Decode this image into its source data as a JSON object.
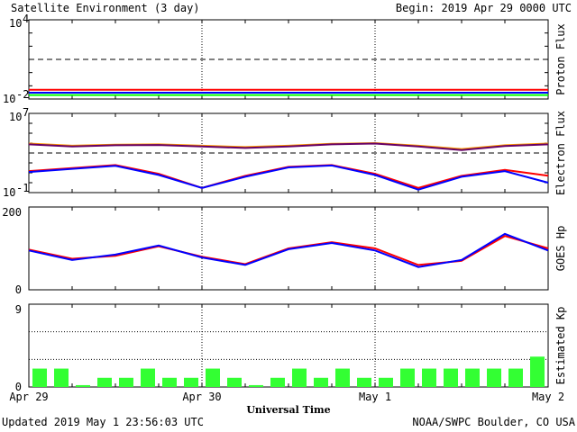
{
  "header": {
    "title": "Satellite Environment (3 day)",
    "begin": "Begin:  2019 Apr 29 0000 UTC"
  },
  "footer": {
    "updated": "Updated 2019 May  1 23:56:03 UTC",
    "credit": "NOAA/SWPC Boulder, CO USA"
  },
  "x_axis": {
    "label": "Universal Time",
    "ticks": [
      "Apr 29",
      "Apr 30",
      "May 1",
      "May 2"
    ]
  },
  "colors": {
    "red": "#ff0000",
    "blue": "#0000ff",
    "green": "#00ff00",
    "orange": "#ff9900",
    "purple": "#660066",
    "kp_bar": "#33ff33"
  },
  "chart_data": [
    {
      "type": "line",
      "ylabel": "Proton Flux",
      "y_scale": "log",
      "ylim": [
        0.01,
        10000
      ],
      "ytick_labels": {
        "top": "10",
        "top_exp": "4",
        "bottom": "10",
        "bottom_exp": "-2"
      },
      "threshold": 10,
      "x": [
        "Apr 29 00",
        "Apr 29 12",
        "Apr 30 00",
        "Apr 30 12",
        "May 1 00",
        "May 1 12",
        "May 2 00"
      ],
      "series": [
        {
          "color": "red",
          "values": [
            0.05,
            0.05,
            0.05,
            0.05,
            0.05,
            0.05,
            0.05
          ]
        },
        {
          "color": "blue",
          "values": [
            0.03,
            0.03,
            0.03,
            0.03,
            0.03,
            0.03,
            0.03
          ]
        },
        {
          "color": "green",
          "values": [
            0.02,
            0.02,
            0.02,
            0.02,
            0.02,
            0.02,
            0.02
          ]
        }
      ]
    },
    {
      "type": "line",
      "ylabel": "Electron Flux",
      "y_scale": "log",
      "ylim": [
        0.1,
        10000000
      ],
      "ytick_labels": {
        "top": "10",
        "top_exp": "7",
        "bottom": "10",
        "bottom_exp": "-1"
      },
      "threshold": 1000,
      "x": [
        "Apr 29 00",
        "Apr 29 06",
        "Apr 29 12",
        "Apr 29 18",
        "Apr 30 00",
        "Apr 30 06",
        "Apr 30 12",
        "Apr 30 18",
        "May 1 00",
        "May 1 06",
        "May 1 12",
        "May 1 18",
        "May 2 00"
      ],
      "series": [
        {
          "color": "orange",
          "values": [
            9000,
            5500,
            7000,
            7500,
            5500,
            4000,
            5500,
            8500,
            10000,
            5500,
            2500,
            6000,
            9000
          ]
        },
        {
          "color": "purple",
          "values": [
            7500,
            4500,
            6000,
            6500,
            4500,
            3200,
            4500,
            7500,
            9000,
            4500,
            2000,
            5000,
            7500
          ]
        },
        {
          "color": "red",
          "values": [
            15,
            30,
            60,
            8,
            0.3,
            5,
            40,
            60,
            8,
            0.3,
            5,
            20,
            5
          ]
        },
        {
          "color": "blue",
          "values": [
            12,
            25,
            50,
            6,
            0.3,
            4,
            35,
            55,
            6,
            0.2,
            4,
            15,
            1
          ]
        }
      ]
    },
    {
      "type": "line",
      "ylabel": "GOES Hp",
      "ylim": [
        0,
        200
      ],
      "ytick_labels": [
        "0",
        "200"
      ],
      "x": [
        "Apr 29 00",
        "Apr 29 06",
        "Apr 29 12",
        "Apr 29 18",
        "Apr 30 00",
        "Apr 30 06",
        "Apr 30 12",
        "Apr 30 18",
        "May 1 00",
        "May 1 06",
        "May 1 12",
        "May 1 18",
        "May 2 00"
      ],
      "series": [
        {
          "color": "red",
          "values": [
            97,
            75,
            82,
            105,
            80,
            62,
            100,
            115,
            100,
            60,
            70,
            130,
            100
          ]
        },
        {
          "color": "blue",
          "values": [
            95,
            72,
            85,
            107,
            78,
            60,
            98,
            113,
            95,
            55,
            72,
            135,
            95
          ]
        }
      ]
    },
    {
      "type": "bar",
      "ylabel": "Estimated Kp",
      "ylim": [
        0,
        9
      ],
      "ytick_labels": [
        "0",
        "9"
      ],
      "categories": [
        "Apr 29 00",
        "Apr 29 03",
        "Apr 29 06",
        "Apr 29 09",
        "Apr 29 12",
        "Apr 29 15",
        "Apr 29 18",
        "Apr 29 21",
        "Apr 30 00",
        "Apr 30 03",
        "Apr 30 06",
        "Apr 30 09",
        "Apr 30 12",
        "Apr 30 15",
        "Apr 30 18",
        "Apr 30 21",
        "May 1 00",
        "May 1 03",
        "May 1 06",
        "May 1 09",
        "May 1 12",
        "May 1 15",
        "May 1 18",
        "May 1 21"
      ],
      "values": [
        2,
        2,
        0.2,
        1,
        1,
        2,
        1,
        1,
        2,
        1,
        0.2,
        1,
        2,
        1,
        2,
        1,
        1,
        2,
        2,
        2,
        2,
        2,
        2,
        3.3
      ]
    }
  ]
}
